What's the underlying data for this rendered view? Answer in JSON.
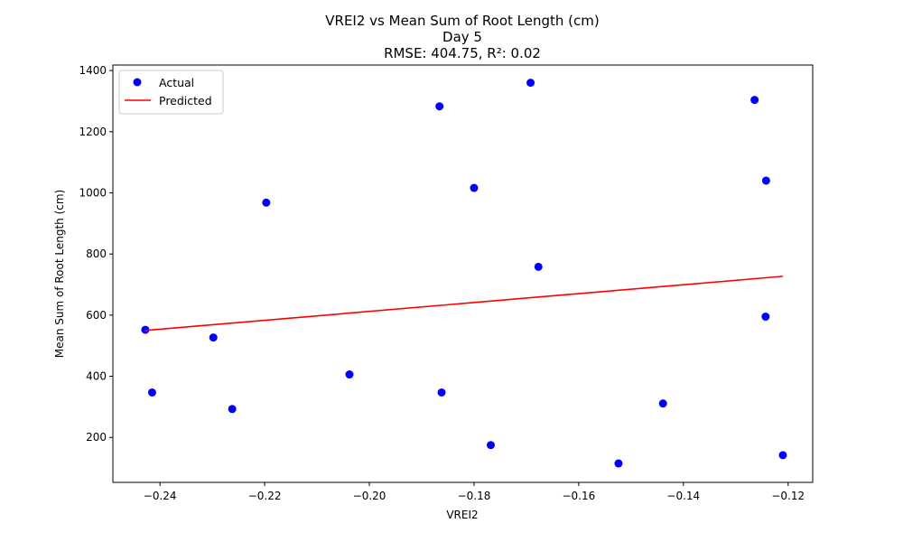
{
  "chart_data": {
    "type": "scatter",
    "title_lines": [
      "VREI2 vs Mean Sum of Root Length (cm)",
      "Day 5",
      "RMSE: 404.75, R²: 0.02"
    ],
    "xlabel": "VREI2",
    "ylabel": "Mean Sum of Root Length (cm)",
    "xlim": [
      -0.249,
      -0.1153
    ],
    "ylim": [
      53,
      1418
    ],
    "xticks": [
      -0.24,
      -0.22,
      -0.2,
      -0.18,
      -0.16,
      -0.14,
      -0.12
    ],
    "xtick_labels": [
      "−0.24",
      "−0.22",
      "−0.20",
      "−0.18",
      "−0.16",
      "−0.14",
      "−0.12"
    ],
    "yticks": [
      200,
      400,
      600,
      800,
      1000,
      1200,
      1400
    ],
    "ytick_labels": [
      "200",
      "400",
      "600",
      "800",
      "1000",
      "1200",
      "1400"
    ],
    "grid": false,
    "legend_position": "top-left",
    "series": [
      {
        "name": "Actual",
        "kind": "scatter",
        "color": "#0000ff",
        "points": [
          {
            "x": -0.2428,
            "y": 552
          },
          {
            "x": -0.2415,
            "y": 347
          },
          {
            "x": -0.2298,
            "y": 527
          },
          {
            "x": -0.2262,
            "y": 293
          },
          {
            "x": -0.2197,
            "y": 968
          },
          {
            "x": -0.2038,
            "y": 406
          },
          {
            "x": -0.1866,
            "y": 1283
          },
          {
            "x": -0.1862,
            "y": 347
          },
          {
            "x": -0.18,
            "y": 1016
          },
          {
            "x": -0.1768,
            "y": 175
          },
          {
            "x": -0.1692,
            "y": 1360
          },
          {
            "x": -0.1677,
            "y": 758
          },
          {
            "x": -0.1524,
            "y": 115
          },
          {
            "x": -0.1439,
            "y": 311
          },
          {
            "x": -0.1264,
            "y": 1304
          },
          {
            "x": -0.1242,
            "y": 1040
          },
          {
            "x": -0.1243,
            "y": 595
          },
          {
            "x": -0.121,
            "y": 142
          }
        ]
      },
      {
        "name": "Predicted",
        "kind": "line",
        "color": "#ff0000",
        "points": [
          {
            "x": -0.2428,
            "y": 550
          },
          {
            "x": -0.121,
            "y": 727
          }
        ]
      }
    ]
  }
}
